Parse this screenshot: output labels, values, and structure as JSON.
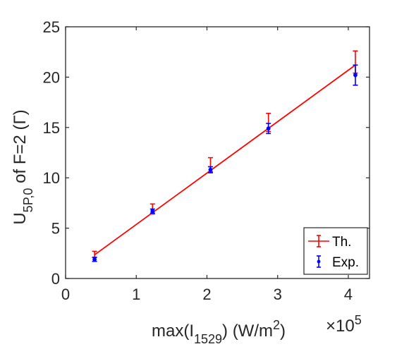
{
  "chart_data": {
    "type": "scatter",
    "x": [
      0.41,
      1.23,
      2.05,
      2.87,
      4.1
    ],
    "x_multiplier_label": "×10",
    "x_multiplier_exponent": "5",
    "xlim": [
      0,
      4.3
    ],
    "ylim": [
      0,
      25
    ],
    "xticks": [
      "0",
      "1",
      "2",
      "3",
      "4"
    ],
    "yticks": [
      "0",
      "5",
      "10",
      "15",
      "20",
      "25"
    ],
    "xlabel": {
      "pre": "max(I",
      "sub": "1529",
      "mid": ") (W/m",
      "sup": "2",
      "post": ")"
    },
    "ylabel": {
      "pre": "U",
      "sub": "5P,0",
      "post": " of F=2 (Γ)"
    },
    "grid": false,
    "legend_position": "bottom-right",
    "series": [
      {
        "name": "Th.",
        "color": "#ff0000",
        "style": "line-errorbar",
        "values": [
          2.4,
          6.9,
          11.3,
          15.5,
          21.5
        ],
        "errors": [
          0.3,
          0.5,
          0.7,
          0.9,
          1.1
        ]
      },
      {
        "name": "Exp.",
        "color": "#0000ff",
        "style": "point-errorbar",
        "values": [
          1.9,
          6.7,
          10.8,
          14.9,
          20.2
        ],
        "errors": [
          0.2,
          0.2,
          0.3,
          0.5,
          1.0
        ]
      }
    ],
    "fit_line": {
      "x": [
        0.41,
        4.1
      ],
      "y": [
        2.35,
        21.2
      ],
      "color": "#ff0000"
    }
  }
}
